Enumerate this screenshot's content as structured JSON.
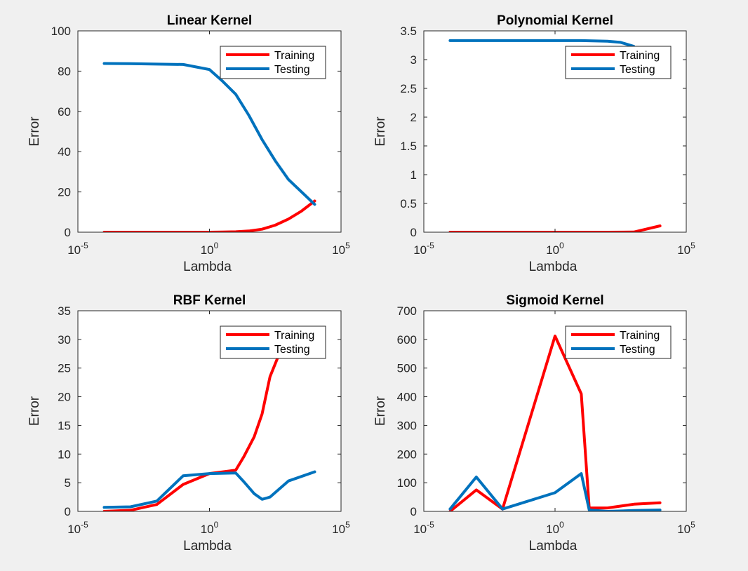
{
  "figure": {
    "background": "#f0f0f0"
  },
  "chart_data": [
    {
      "type": "line",
      "title": "Linear Kernel",
      "xlabel": "Lambda",
      "ylabel": "Error",
      "xscale": "log",
      "xlim": [
        1e-05,
        100000
      ],
      "ylim": [
        0,
        100
      ],
      "xticks": [
        {
          "base": "10",
          "exp": "-5"
        },
        {
          "base": "10",
          "exp": "0"
        },
        {
          "base": "10",
          "exp": "5"
        }
      ],
      "yticks": [
        "0",
        "20",
        "40",
        "60",
        "80",
        "100"
      ],
      "legend": "top-right",
      "grid": false,
      "series": [
        {
          "name": "Training",
          "color": "#ff0000",
          "x": [
            0.0001,
            0.001,
            0.01,
            0.1,
            1,
            3.16,
            10,
            31.6,
            100,
            316,
            1000,
            3162,
            10000
          ],
          "values": [
            0,
            0,
            0,
            0,
            0,
            0.1,
            0.2,
            0.6,
            1.5,
            3.5,
            6.5,
            10.5,
            15.5
          ]
        },
        {
          "name": "Testing",
          "color": "#0072bd",
          "x": [
            0.0001,
            0.001,
            0.01,
            0.1,
            1,
            3.16,
            10,
            31.6,
            100,
            316,
            1000,
            3162,
            10000
          ],
          "values": [
            83.8,
            83.7,
            83.5,
            83.3,
            80.8,
            75,
            68.5,
            58,
            46,
            35.5,
            26.2,
            20,
            13.8
          ]
        }
      ]
    },
    {
      "type": "line",
      "title": "Polynomial Kernel",
      "xlabel": "Lambda",
      "ylabel": "Error",
      "xscale": "log",
      "xlim": [
        1e-05,
        100000
      ],
      "ylim": [
        0,
        3.5
      ],
      "xticks": [
        {
          "base": "10",
          "exp": "-5"
        },
        {
          "base": "10",
          "exp": "0"
        },
        {
          "base": "10",
          "exp": "5"
        }
      ],
      "yticks": [
        "0",
        "0.5",
        "1",
        "1.5",
        "2",
        "2.5",
        "3",
        "3.5"
      ],
      "legend": "top-right",
      "grid": false,
      "series": [
        {
          "name": "Training",
          "color": "#ff0000",
          "x": [
            0.0001,
            0.001,
            0.01,
            0.1,
            1,
            10,
            100,
            1000,
            10000
          ],
          "values": [
            0,
            0,
            0,
            0,
            0,
            0,
            0,
            0.002,
            0.11
          ]
        },
        {
          "name": "Testing",
          "color": "#0072bd",
          "x": [
            0.0001,
            0.001,
            0.01,
            0.1,
            1,
            10,
            100,
            316,
            1000
          ],
          "values": [
            3.33,
            3.33,
            3.33,
            3.33,
            3.33,
            3.33,
            3.32,
            3.3,
            3.23
          ]
        }
      ]
    },
    {
      "type": "line",
      "title": "RBF Kernel",
      "xlabel": "Lambda",
      "ylabel": "Error",
      "xscale": "log",
      "xlim": [
        1e-05,
        100000
      ],
      "ylim": [
        0,
        35
      ],
      "xticks": [
        {
          "base": "10",
          "exp": "-5"
        },
        {
          "base": "10",
          "exp": "0"
        },
        {
          "base": "10",
          "exp": "5"
        }
      ],
      "yticks": [
        "0",
        "5",
        "10",
        "15",
        "20",
        "25",
        "30",
        "35"
      ],
      "legend": "top-right",
      "grid": false,
      "series": [
        {
          "name": "Training",
          "color": "#ff0000",
          "x": [
            0.0001,
            0.001,
            0.01,
            0.1,
            1,
            10,
            20,
            50,
            100,
            200,
            500,
            1000
          ],
          "values": [
            0,
            0.2,
            1.2,
            4.7,
            6.6,
            7.2,
            9.5,
            13,
            17,
            23.5,
            28,
            29.5
          ]
        },
        {
          "name": "Testing",
          "color": "#0072bd",
          "x": [
            0.0001,
            0.001,
            0.01,
            0.1,
            1,
            10,
            20,
            50,
            100,
            200,
            1000,
            10000
          ],
          "values": [
            0.7,
            0.8,
            1.8,
            6.2,
            6.6,
            6.7,
            5.2,
            3.1,
            2.1,
            2.5,
            5.3,
            6.9
          ]
        }
      ]
    },
    {
      "type": "line",
      "title": "Sigmoid Kernel",
      "xlabel": "Lambda",
      "ylabel": "Error",
      "xscale": "log",
      "xlim": [
        1e-05,
        100000
      ],
      "ylim": [
        0,
        700
      ],
      "xticks": [
        {
          "base": "10",
          "exp": "-5"
        },
        {
          "base": "10",
          "exp": "0"
        },
        {
          "base": "10",
          "exp": "5"
        }
      ],
      "yticks": [
        "0",
        "100",
        "200",
        "300",
        "400",
        "500",
        "600",
        "700"
      ],
      "legend": "top-right",
      "grid": false,
      "series": [
        {
          "name": "Training",
          "color": "#ff0000",
          "x": [
            0.0001,
            0.001,
            0.01,
            1,
            10,
            20,
            100,
            1000,
            10000
          ],
          "values": [
            0,
            75,
            8,
            612,
            410,
            12,
            12,
            25,
            30
          ]
        },
        {
          "name": "Testing",
          "color": "#0072bd",
          "x": [
            0.0001,
            0.001,
            0.01,
            1,
            10,
            20,
            100,
            1000,
            10000
          ],
          "values": [
            8,
            120,
            8,
            65,
            132,
            5,
            0,
            3,
            5
          ]
        }
      ]
    }
  ]
}
